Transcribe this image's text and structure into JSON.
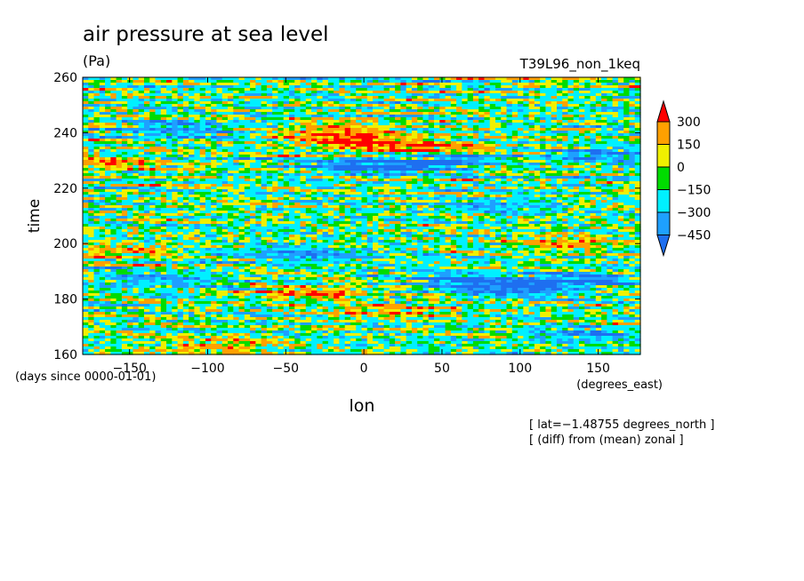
{
  "chart_data": {
    "type": "heatmap",
    "title": "air pressure at sea level",
    "units_label": "(Pa)",
    "subtitle_right": "T39L96_non_1keq",
    "xlabel": "lon",
    "xunits": "(degrees_east)",
    "ylabel": "time",
    "yunits": "(days since 0000-01-01)",
    "xlim": [
      -180,
      177
    ],
    "ylim": [
      160,
      260
    ],
    "x_ticks": [
      -150,
      -100,
      -50,
      0,
      50,
      100,
      150
    ],
    "x_tick_labels": [
      "−150",
      "−100",
      "−50",
      "0",
      "50",
      "100",
      "150"
    ],
    "y_ticks": [
      160,
      180,
      200,
      220,
      240,
      260
    ],
    "y_tick_labels": [
      "160",
      "180",
      "200",
      "220",
      "240",
      "260"
    ],
    "notes": [
      "[ lat=−1.48755 degrees_north ]",
      "[ (diff) from (mean) zonal ]"
    ],
    "colorbar": {
      "levels": [
        -450,
        -300,
        -150,
        0,
        150,
        300
      ],
      "level_labels": [
        "−450",
        "−300",
        "−150",
        "0",
        "150",
        "300"
      ],
      "colors": [
        "#1e6ff0",
        "#1ea0ff",
        "#00f0ff",
        "#00dc00",
        "#a0e632",
        "#f0f000",
        "#ffa000",
        "#ff0000"
      ],
      "extend": "both"
    },
    "features": [
      {
        "x": -5,
        "y": 237,
        "value": 350
      },
      {
        "x": 40,
        "y": 234,
        "value": 300
      },
      {
        "x": -20,
        "y": 241,
        "value": 250
      },
      {
        "x": 5,
        "y": 228,
        "value": -420
      },
      {
        "x": 50,
        "y": 230,
        "value": -380
      },
      {
        "x": -120,
        "y": 241,
        "value": -300
      },
      {
        "x": 95,
        "y": 184,
        "value": -420
      },
      {
        "x": 140,
        "y": 187,
        "value": -350
      },
      {
        "x": 60,
        "y": 187,
        "value": -300
      },
      {
        "x": -30,
        "y": 182,
        "value": 250
      },
      {
        "x": 20,
        "y": 176,
        "value": 230
      },
      {
        "x": 130,
        "y": 200,
        "value": 200
      },
      {
        "x": -150,
        "y": 197,
        "value": 200
      },
      {
        "x": -40,
        "y": 196,
        "value": -280
      },
      {
        "x": -130,
        "y": 187,
        "value": -250
      },
      {
        "x": 150,
        "y": 232,
        "value": -260
      },
      {
        "x": -160,
        "y": 229,
        "value": 230
      },
      {
        "x": 80,
        "y": 214,
        "value": -200
      },
      {
        "x": -90,
        "y": 163,
        "value": 220
      },
      {
        "x": 140,
        "y": 167,
        "value": -220
      }
    ]
  }
}
